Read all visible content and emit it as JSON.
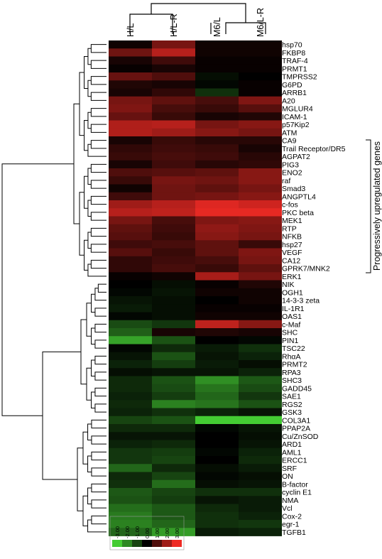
{
  "chart_data": {
    "type": "heatmap",
    "columns": [
      "H/L",
      "H/L-R",
      "M6/L",
      "M6/L-R"
    ],
    "rows": [
      "hsp70",
      "FKBP8",
      "TRAF-4",
      "PRMT1",
      "TMPRSS2",
      "G6PD",
      "ARRB1",
      "A20",
      "MGLUR4",
      "ICAM-1",
      "p57Kip2",
      "ATM",
      "CA9",
      "Trail Receptor/DR5",
      "AGPAT2",
      "PIG3",
      "ENO2",
      "raf",
      "Smad3",
      "ANGPTL4",
      "c-fos",
      "PKC beta",
      "MEK1",
      "RTP",
      "NFKB",
      "hsp27",
      "VEGF",
      "CA12",
      "GPRK7/MNK2",
      "ERK1",
      "NIK",
      "OGH1",
      "14-3-3 zeta",
      "IL-1R1",
      "OAS1",
      "c-Maf",
      "SHC",
      "PIN1",
      "TSC22",
      "RhαA",
      "PRMT2",
      "RPA3",
      "SHC3",
      "GADD45",
      "SAE1",
      "RGS2",
      "GSK3",
      "COL3A1",
      "PPAP2A",
      "Cu/ZnSOD",
      "ARD1",
      "AML1",
      "ERCC1",
      "SRF",
      "ON",
      "B-factor",
      "cyclin E1",
      "NMA",
      "Vcl",
      "Cox-2",
      "egr-1",
      "TGFB1"
    ],
    "values": [
      [
        0.2,
        1.5,
        0.2,
        0.2
      ],
      [
        1.4,
        2.3,
        0.2,
        0.2
      ],
      [
        0.3,
        0.8,
        0.1,
        0.1
      ],
      [
        0.1,
        0.3,
        0.1,
        0.1
      ],
      [
        1.3,
        1.0,
        -0.2,
        0.0
      ],
      [
        0.4,
        0.3,
        -0.1,
        0.1
      ],
      [
        0.3,
        0.6,
        -0.7,
        0.1
      ],
      [
        1.5,
        1.2,
        0.9,
        1.6
      ],
      [
        1.6,
        0.9,
        0.7,
        1.1
      ],
      [
        1.3,
        0.7,
        0.3,
        0.4
      ],
      [
        2.2,
        2.3,
        1.5,
        1.7
      ],
      [
        2.2,
        2.0,
        1.7,
        1.5
      ],
      [
        0.3,
        0.7,
        0.5,
        0.5
      ],
      [
        0.6,
        0.8,
        0.7,
        0.3
      ],
      [
        0.7,
        0.9,
        0.8,
        0.5
      ],
      [
        0.3,
        0.8,
        0.5,
        0.6
      ],
      [
        1.0,
        1.1,
        1.2,
        1.7
      ],
      [
        0.7,
        1.5,
        1.4,
        1.7
      ],
      [
        0.2,
        1.4,
        1.2,
        1.5
      ],
      [
        0.8,
        1.4,
        1.5,
        1.7
      ],
      [
        2.0,
        2.3,
        2.8,
        2.6
      ],
      [
        2.3,
        2.4,
        2.9,
        2.9
      ],
      [
        1.5,
        0.9,
        1.6,
        1.7
      ],
      [
        1.2,
        0.8,
        1.8,
        1.6
      ],
      [
        1.1,
        0.7,
        1.7,
        1.5
      ],
      [
        0.8,
        0.9,
        1.2,
        0.7
      ],
      [
        1.1,
        0.7,
        1.2,
        1.6
      ],
      [
        0.6,
        0.8,
        0.9,
        1.5
      ],
      [
        0.6,
        0.9,
        0.7,
        1.2
      ],
      [
        0.1,
        0.2,
        2.1,
        1.5
      ],
      [
        0.0,
        -0.2,
        0.1,
        0.4
      ],
      [
        -0.1,
        -0.3,
        0.2,
        0.2
      ],
      [
        -0.3,
        -0.2,
        0.0,
        0.2
      ],
      [
        -0.4,
        -0.2,
        0.1,
        0.1
      ],
      [
        -0.1,
        -0.2,
        0.2,
        0.2
      ],
      [
        -1.1,
        -0.8,
        2.4,
        1.7
      ],
      [
        -1.4,
        0.3,
        0.4,
        0.3
      ],
      [
        -2.4,
        -1.2,
        0.0,
        -0.1
      ],
      [
        -0.1,
        -0.6,
        -0.4,
        -0.7
      ],
      [
        -0.3,
        -1.2,
        -0.3,
        -0.5
      ],
      [
        -0.5,
        -0.9,
        -0.4,
        -0.2
      ],
      [
        -0.2,
        -0.3,
        -0.3,
        -0.5
      ],
      [
        -0.6,
        -1.2,
        -2.1,
        -1.3
      ],
      [
        -0.6,
        -1.1,
        -1.7,
        -1.1
      ],
      [
        -0.5,
        -0.9,
        -1.5,
        -0.8
      ],
      [
        -0.6,
        -1.9,
        -1.7,
        -1.2
      ],
      [
        -0.5,
        -0.7,
        -0.5,
        -0.3
      ],
      [
        -1.0,
        -1.2,
        -3.0,
        -3.0
      ],
      [
        -0.6,
        -0.6,
        -0.1,
        -0.3
      ],
      [
        -0.3,
        -0.3,
        0.0,
        -0.2
      ],
      [
        -0.5,
        -0.6,
        0.0,
        -0.3
      ],
      [
        -0.8,
        -0.9,
        -0.1,
        -0.5
      ],
      [
        -0.8,
        -1.0,
        0.0,
        -0.6
      ],
      [
        -1.5,
        -0.6,
        -0.2,
        -0.4
      ],
      [
        -0.6,
        -1.0,
        -0.1,
        -0.2
      ],
      [
        -0.7,
        -1.6,
        -0.2,
        -0.3
      ],
      [
        -1.3,
        -1.0,
        -0.7,
        -0.7
      ],
      [
        -1.2,
        -0.9,
        -0.3,
        -0.4
      ],
      [
        -1.6,
        -1.3,
        -0.6,
        -0.4
      ],
      [
        -1.8,
        -1.3,
        -0.7,
        -0.5
      ],
      [
        -1.9,
        -1.5,
        -0.7,
        -0.8
      ],
      [
        -1.5,
        -2.3,
        -0.4,
        -0.5
      ]
    ],
    "color_scale": {
      "ticks": [
        "-3.00",
        "-2.00",
        "-1.00",
        "0.00",
        "1.00",
        "2.00",
        "3.00"
      ],
      "min_color": "#44cc33",
      "mid_color": "#000000",
      "max_color": "#ee2a24"
    },
    "annotation": "Progressively upregulated genes"
  }
}
